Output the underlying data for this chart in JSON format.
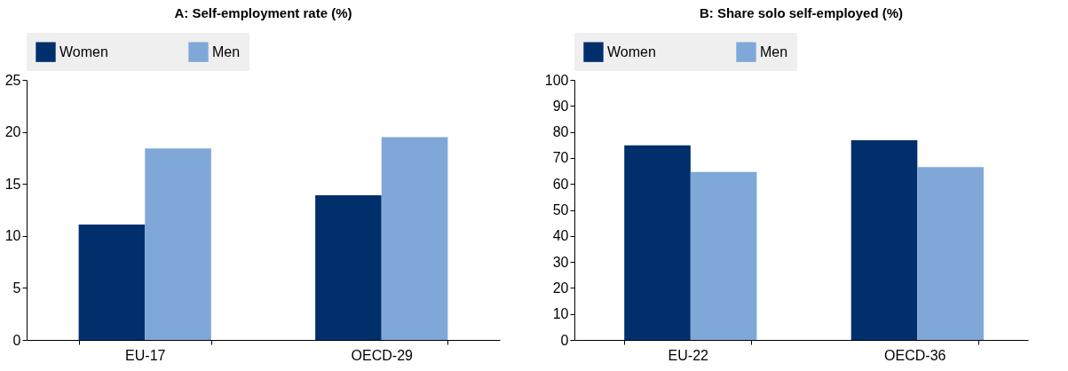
{
  "chart_data": [
    {
      "type": "bar",
      "title": "A: Self-employment rate (%)",
      "categories": [
        "EU-17",
        "OECD-29"
      ],
      "series": [
        {
          "name": "Women",
          "color": "#002f6c",
          "values": [
            11.1,
            13.9
          ]
        },
        {
          "name": "Men",
          "color": "#7fa8d9",
          "values": [
            18.4,
            19.5
          ]
        }
      ],
      "ylim": [
        0,
        25
      ],
      "yticks": [
        0,
        5,
        10,
        15,
        20,
        25
      ],
      "grid": false,
      "legend": "top"
    },
    {
      "type": "bar",
      "title": "B: Share solo self-employed (%)",
      "categories": [
        "EU-22",
        "OECD-36"
      ],
      "series": [
        {
          "name": "Women",
          "color": "#002f6c",
          "values": [
            74.8,
            76.8
          ]
        },
        {
          "name": "Men",
          "color": "#7fa8d9",
          "values": [
            64.6,
            66.5
          ]
        }
      ],
      "ylim": [
        0,
        100
      ],
      "yticks": [
        0,
        10,
        20,
        30,
        40,
        50,
        60,
        70,
        80,
        90,
        100
      ],
      "grid": false,
      "legend": "top"
    }
  ]
}
